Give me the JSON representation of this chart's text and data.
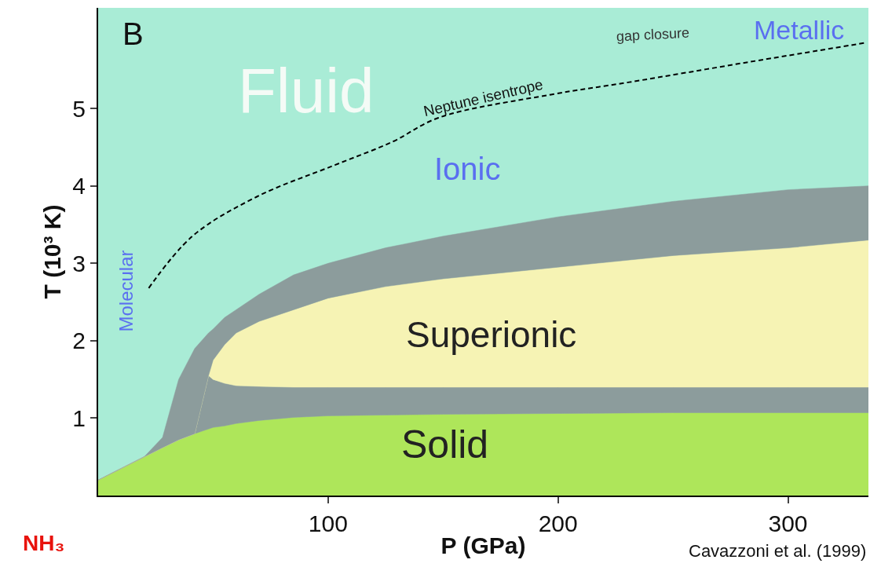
{
  "chart_data": {
    "type": "area",
    "stacked": true,
    "xlabel": "P (GPa)",
    "ylabel": "T (10³ K)",
    "xlim": [
      0,
      335
    ],
    "ylim": [
      0,
      6.3
    ],
    "xticks": [
      100,
      200,
      300
    ],
    "yticks": [
      1,
      2,
      3,
      4,
      5
    ],
    "grid": false,
    "x": [
      0,
      10,
      20,
      28,
      35,
      42,
      48,
      50,
      55,
      60,
      70,
      85,
      100,
      125,
      150,
      200,
      250,
      300,
      335
    ],
    "series": [
      {
        "color": "#aee65a",
        "values": [
          0.2,
          0.35,
          0.5,
          0.62,
          0.72,
          0.8,
          0.86,
          0.88,
          0.9,
          0.93,
          0.97,
          1.01,
          1.03,
          1.04,
          1.05,
          1.06,
          1.07,
          1.07,
          1.07
        ]
      },
      {
        "color": "#8c9c9c",
        "values": [
          0,
          0,
          0,
          0,
          0,
          0,
          0.69,
          0.62,
          0.55,
          0.49,
          0.44,
          0.39,
          0.37,
          0.36,
          0.35,
          0.34,
          0.33,
          0.33,
          0.33
        ]
      },
      {
        "color": "#f6f3b4",
        "values": [
          0,
          0,
          0,
          0,
          0,
          0,
          0,
          0.25,
          0.5,
          0.68,
          0.84,
          1.0,
          1.15,
          1.3,
          1.4,
          1.55,
          1.7,
          1.8,
          1.9
        ]
      },
      {
        "color": "#8c9c9c",
        "values": [
          0,
          0,
          0,
          0.13,
          0.78,
          1.1,
          0.55,
          0.4,
          0.35,
          0.3,
          0.35,
          0.45,
          0.45,
          0.5,
          0.55,
          0.65,
          0.7,
          0.75,
          0.7
        ]
      },
      {
        "type": "line",
        "color": "#000000",
        "line_style": "dashed",
        "x": [
          22,
          41,
          69,
          103,
          128,
          148,
          197,
          231,
          283,
          334
        ],
        "values": [
          2.68,
          3.35,
          3.86,
          4.27,
          4.57,
          4.88,
          5.18,
          5.34,
          5.6,
          5.85
        ]
      }
    ],
    "annotations": [
      "Fluid",
      "Ionic",
      "Superionic",
      "Solid",
      "Molecular",
      "Metallic",
      "gap closure",
      "Neptune isentrope",
      "B",
      "NH₃",
      "Cavazzoni et al. (1999)"
    ]
  }
}
